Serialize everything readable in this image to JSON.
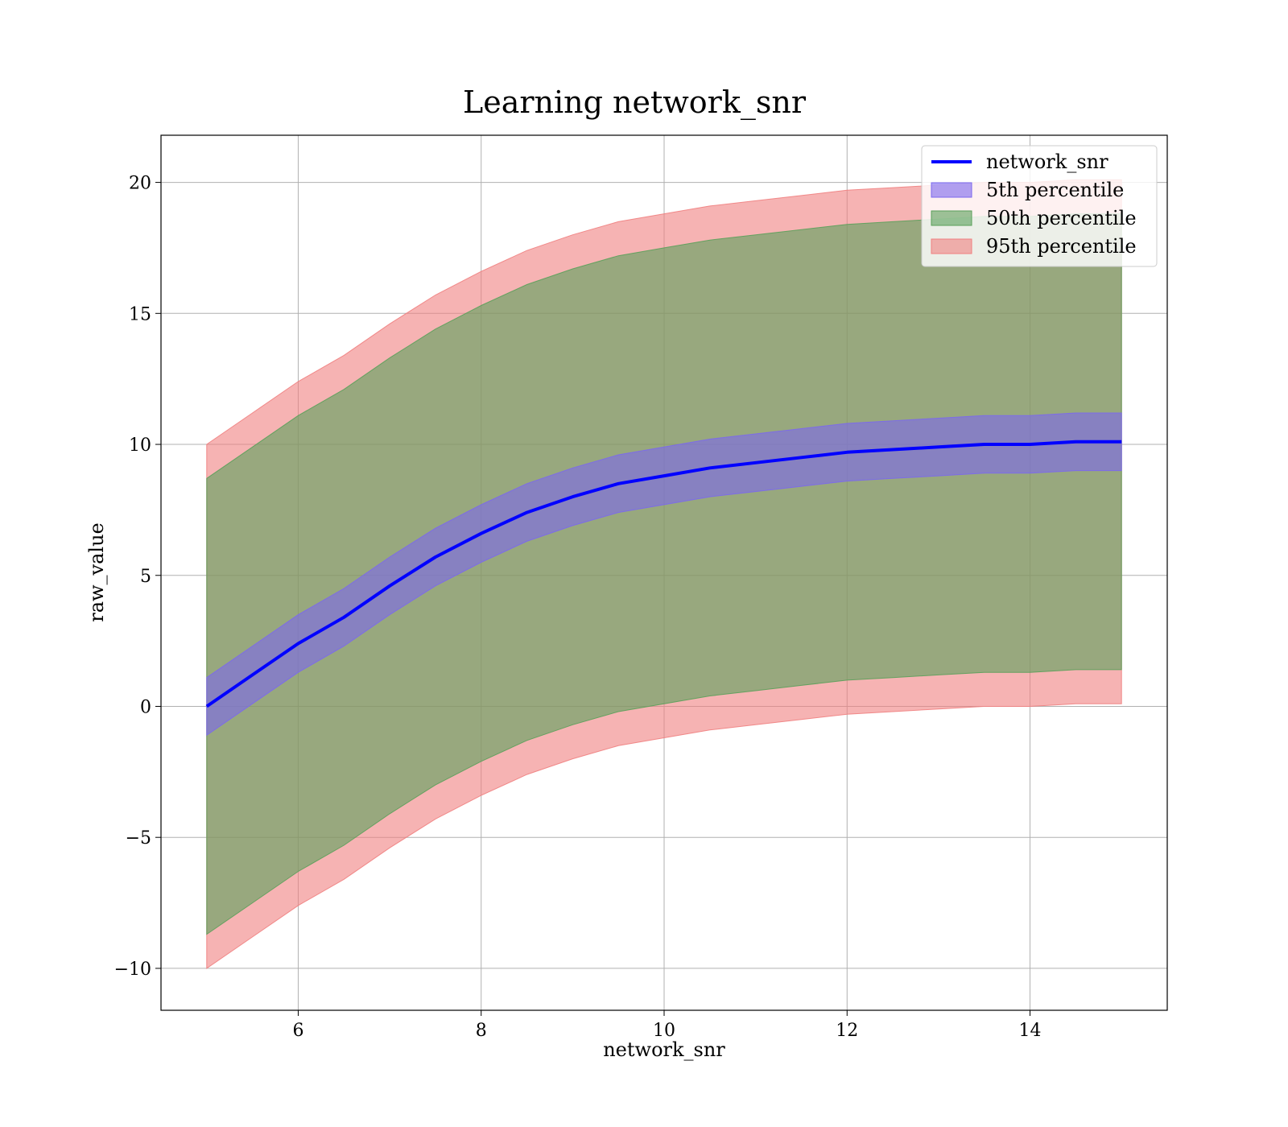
{
  "chart_data": {
    "type": "area",
    "title": "Learning network_snr",
    "xlabel": "network_snr",
    "ylabel": "raw_value",
    "xlim": [
      4.5,
      15.5
    ],
    "ylim": [
      -11.6,
      21.8
    ],
    "xticks": [
      6,
      8,
      10,
      12,
      14
    ],
    "yticks": [
      -10,
      -5,
      0,
      5,
      10,
      15,
      20
    ],
    "grid": true,
    "legend_position": "top-right",
    "x": [
      5,
      5.5,
      6,
      6.5,
      7,
      7.5,
      8,
      8.5,
      9,
      9.5,
      10,
      10.5,
      11,
      11.5,
      12,
      12.5,
      13,
      13.5,
      14,
      14.5,
      15
    ],
    "line": {
      "name": "network_snr",
      "color": "#0000ff",
      "values": [
        0.0,
        1.2,
        2.4,
        3.4,
        4.6,
        5.7,
        6.6,
        7.4,
        8.0,
        8.5,
        8.8,
        9.1,
        9.3,
        9.5,
        9.7,
        9.8,
        9.9,
        10.0,
        10.0,
        10.1,
        10.1
      ]
    },
    "series": [
      {
        "name": "5th percentile",
        "color": "#7b68ee",
        "lower": [
          -1.1,
          0.1,
          1.3,
          2.3,
          3.5,
          4.6,
          5.5,
          6.3,
          6.9,
          7.4,
          7.7,
          8.0,
          8.2,
          8.4,
          8.6,
          8.7,
          8.8,
          8.9,
          8.9,
          9.0,
          9.0
        ],
        "upper": [
          1.1,
          2.3,
          3.5,
          4.5,
          5.7,
          6.8,
          7.7,
          8.5,
          9.1,
          9.6,
          9.9,
          10.2,
          10.4,
          10.6,
          10.8,
          10.9,
          11.0,
          11.1,
          11.1,
          11.2,
          11.2
        ]
      },
      {
        "name": "50th percentile",
        "color": "#5aa05a",
        "lower": [
          -8.7,
          -7.5,
          -6.3,
          -5.3,
          -4.1,
          -3.0,
          -2.1,
          -1.3,
          -0.7,
          -0.2,
          0.1,
          0.4,
          0.6,
          0.8,
          1.0,
          1.1,
          1.2,
          1.3,
          1.3,
          1.4,
          1.4
        ],
        "upper": [
          8.7,
          9.9,
          11.1,
          12.1,
          13.3,
          14.4,
          15.3,
          16.1,
          16.7,
          17.2,
          17.5,
          17.8,
          18.0,
          18.2,
          18.4,
          18.5,
          18.6,
          18.7,
          18.7,
          18.8,
          18.8
        ]
      },
      {
        "name": "95th percentile",
        "color": "#f08080",
        "lower": [
          -10.0,
          -8.8,
          -7.6,
          -6.6,
          -5.4,
          -4.3,
          -3.4,
          -2.6,
          -2.0,
          -1.5,
          -1.2,
          -0.9,
          -0.7,
          -0.5,
          -0.3,
          -0.2,
          -0.1,
          0.0,
          0.0,
          0.1,
          0.1
        ],
        "upper": [
          10.0,
          11.2,
          12.4,
          13.4,
          14.6,
          15.7,
          16.6,
          17.4,
          18.0,
          18.5,
          18.8,
          19.1,
          19.3,
          19.5,
          19.7,
          19.8,
          19.9,
          20.0,
          20.0,
          20.1,
          20.1
        ]
      }
    ]
  }
}
